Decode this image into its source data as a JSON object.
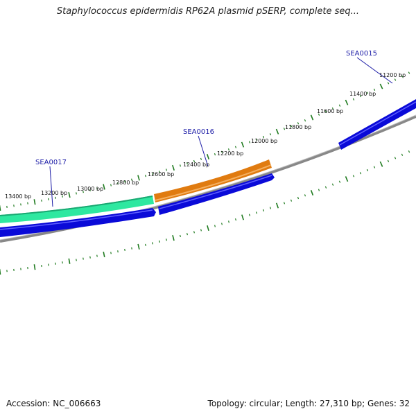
{
  "title": "Staphylococcus epidermidis RP62A plasmid pSERP, complete seq...",
  "footer": {
    "accession": "Accession: NC_006663",
    "summary": "Topology: circular; Length: 27,310 bp; Genes: 32"
  },
  "tick_labels": [
    "11200 bp",
    "11400 bp",
    "11600 bp",
    "11800 bp",
    "12000 bp",
    "12200 bp",
    "12400 bp",
    "12600 bp",
    "12800 bp",
    "13000 bp",
    "13200 bp",
    "13400 bp"
  ],
  "gene_labels": [
    "SEA0015",
    "SEA0016",
    "SEA0017"
  ],
  "colors": {
    "tick": "#1e7a1e",
    "forward_gene_orange": "#e07b10",
    "forward_gene_teal": "#2ee8a0",
    "reverse_gene": "#0a0ad8",
    "backbone": "#808080",
    "gene_label": "#1a1aa6"
  }
}
